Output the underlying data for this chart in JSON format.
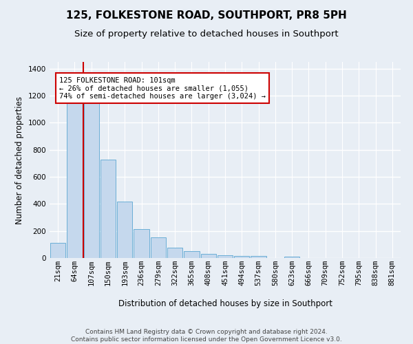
{
  "title": "125, FOLKESTONE ROAD, SOUTHPORT, PR8 5PH",
  "subtitle": "Size of property relative to detached houses in Southport",
  "xlabel": "Distribution of detached houses by size in Southport",
  "ylabel": "Number of detached properties",
  "categories": [
    "21sqm",
    "64sqm",
    "107sqm",
    "150sqm",
    "193sqm",
    "236sqm",
    "279sqm",
    "322sqm",
    "365sqm",
    "408sqm",
    "451sqm",
    "494sqm",
    "537sqm",
    "580sqm",
    "623sqm",
    "666sqm",
    "709sqm",
    "752sqm",
    "795sqm",
    "838sqm",
    "881sqm"
  ],
  "bar_values": [
    110,
    1170,
    1150,
    730,
    415,
    215,
    155,
    75,
    50,
    30,
    20,
    15,
    15,
    0,
    10,
    0,
    0,
    0,
    0,
    0,
    0
  ],
  "bar_color": "#c5d8ed",
  "bar_edge_color": "#6aaed6",
  "vline_position": 1.5,
  "vline_color": "#cc0000",
  "annotation_text": "125 FOLKESTONE ROAD: 101sqm\n← 26% of detached houses are smaller (1,055)\n74% of semi-detached houses are larger (3,024) →",
  "annotation_box_facecolor": "white",
  "annotation_box_edgecolor": "#cc0000",
  "ylim": [
    0,
    1450
  ],
  "yticks": [
    0,
    200,
    400,
    600,
    800,
    1000,
    1200,
    1400
  ],
  "background_color": "#e8eef5",
  "grid_color": "#ffffff",
  "title_fontsize": 11,
  "subtitle_fontsize": 9.5,
  "ylabel_fontsize": 8.5,
  "xlabel_fontsize": 8.5,
  "tick_fontsize": 7.5,
  "annot_fontsize": 7.5,
  "footer_fontsize": 6.5,
  "footer_line1": "Contains HM Land Registry data © Crown copyright and database right 2024.",
  "footer_line2": "Contains public sector information licensed under the Open Government Licence v3.0."
}
